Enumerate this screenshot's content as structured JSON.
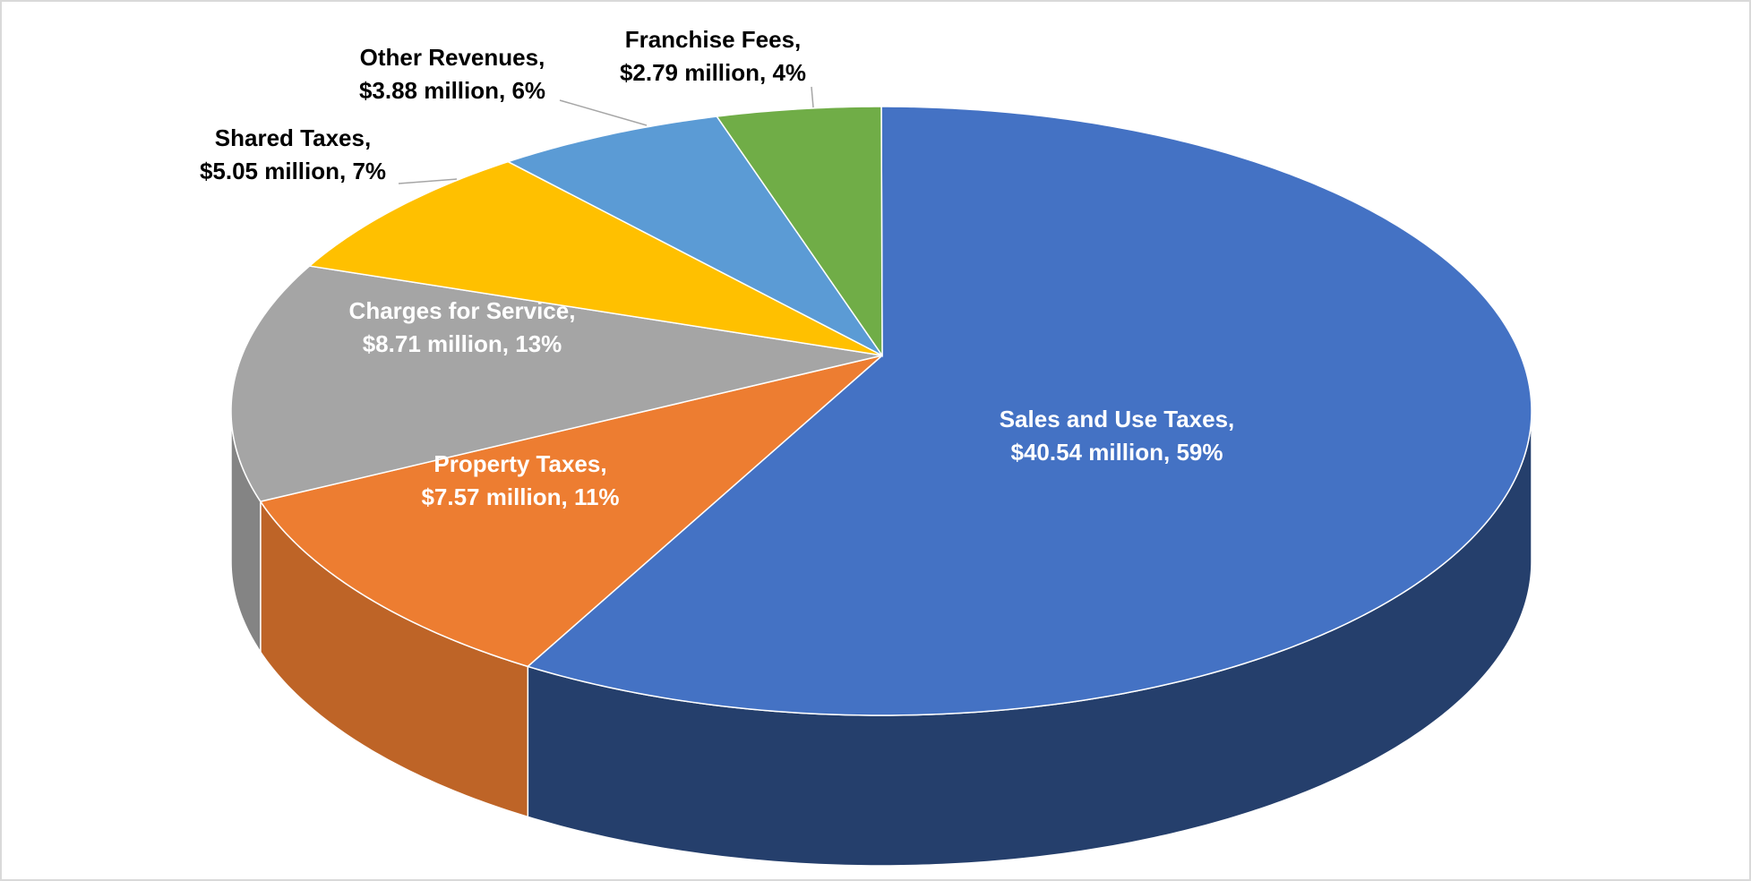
{
  "chart_data": {
    "type": "pie3d",
    "categories": [
      "Sales and Use Taxes,",
      "Property Taxes,",
      "Charges for Service,",
      "Shared Taxes,",
      "Other Revenues,",
      "Franchise  Fees,"
    ],
    "values": [
      40.54,
      7.57,
      8.71,
      5.05,
      3.88,
      2.79
    ],
    "value_labels": [
      "$40.54 million, 59%",
      "$7.57 million, 11%",
      "$8.71 million, 13%",
      "$5.05 million, 7%",
      "$3.88 million, 6%",
      "$2.79 million, 4%"
    ],
    "colors": [
      "#4472c4",
      "#ed7d31",
      "#a5a5a5",
      "#ffc000",
      "#5b9bd5",
      "#70ad47"
    ]
  }
}
